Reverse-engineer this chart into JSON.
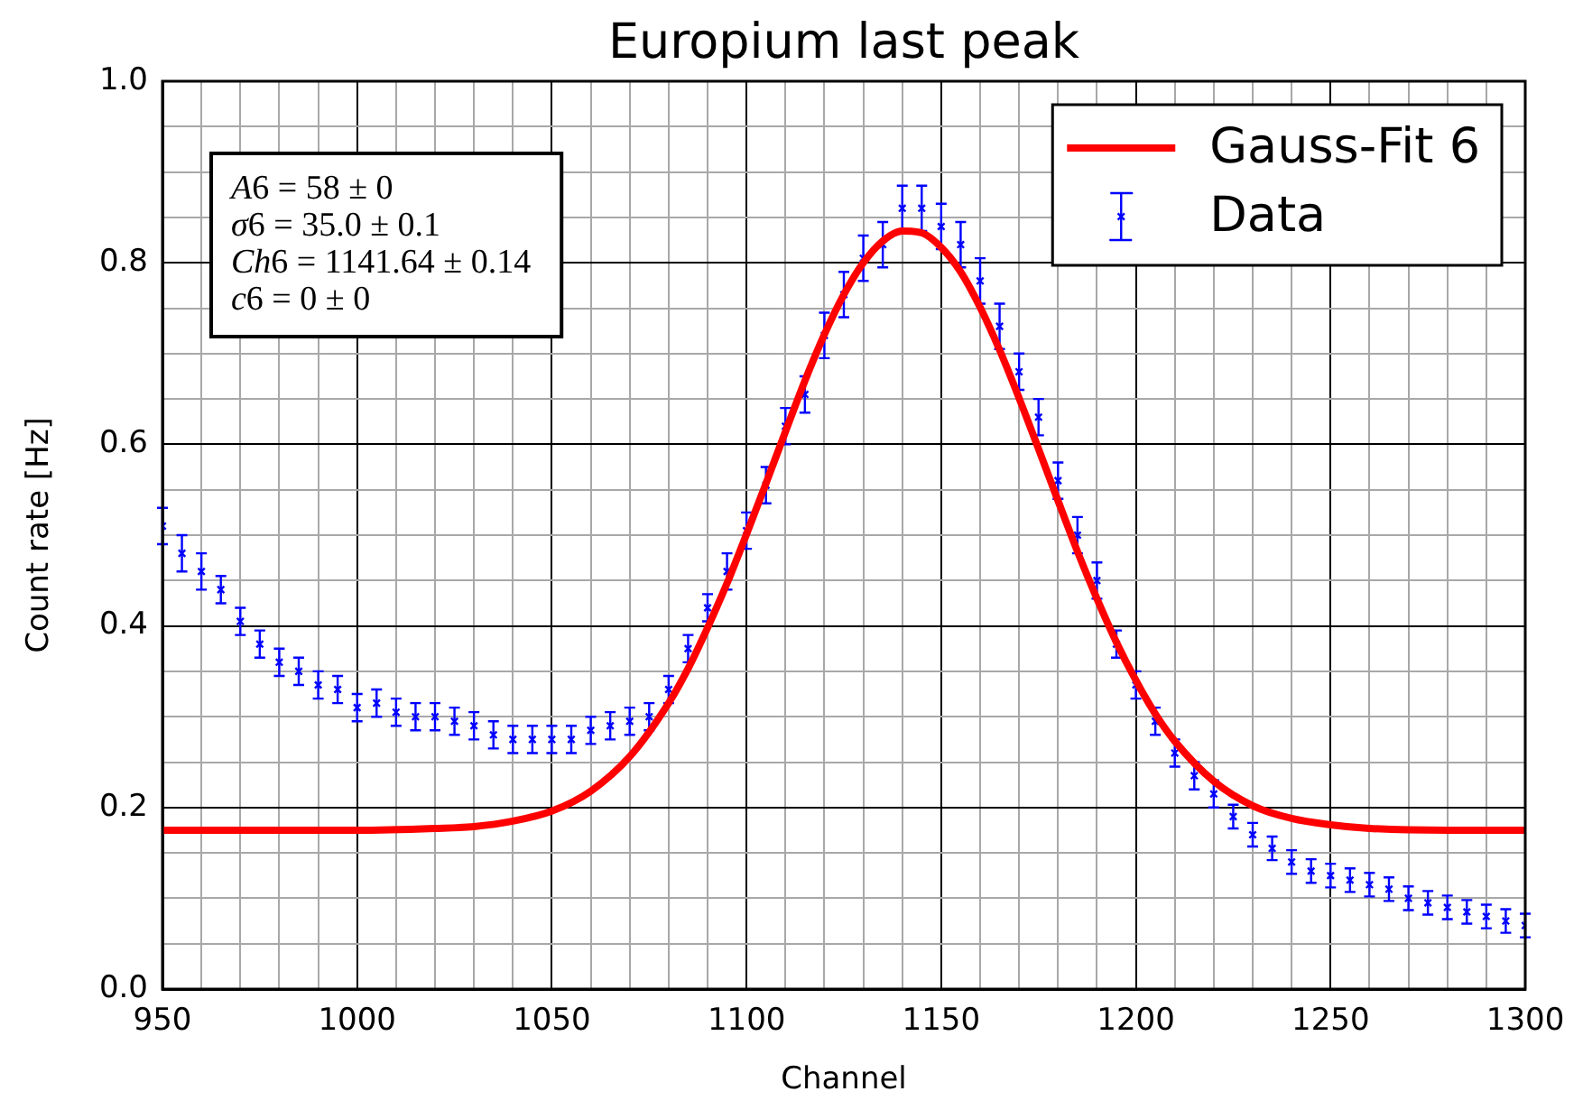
{
  "chart_data": {
    "type": "scatter",
    "title": "Europium last peak",
    "xlabel": "Channel",
    "ylabel": "Count rate [Hz]",
    "annotations": [
      "A6 = 58 ± 0",
      "σ6 = 35.0 ± 0.1",
      "Ch6 = 1141.64 ± 0.14",
      "c6 = 0 ± 0"
    ],
    "xlim": [
      950,
      1300
    ],
    "xticks": [
      950,
      {
        "value": 960,
        "label": null
      },
      {
        "value": 970,
        "label": null
      },
      {
        "value": 980,
        "label": null
      },
      {
        "value": 990,
        "label": null
      },
      1000,
      {
        "value": 1010,
        "label": null
      },
      {
        "value": 1020,
        "label": null
      },
      {
        "value": 1030,
        "label": null
      },
      {
        "value": 1040,
        "label": null
      },
      1050,
      {
        "value": 1060,
        "label": null
      },
      {
        "value": 1070,
        "label": null
      },
      {
        "value": 1080,
        "label": null
      },
      {
        "value": 1090,
        "label": null
      },
      1100,
      {
        "value": 1110,
        "label": null
      },
      {
        "value": 1120,
        "label": null
      },
      {
        "value": 1130,
        "label": null
      },
      {
        "value": 1140,
        "label": null
      },
      1150,
      {
        "value": 1160,
        "label": null
      },
      {
        "value": 1170,
        "label": null
      },
      {
        "value": 1180,
        "label": null
      },
      {
        "value": 1190,
        "label": null
      },
      1200,
      {
        "value": 1210,
        "label": null
      },
      {
        "value": 1220,
        "label": null
      },
      {
        "value": 1230,
        "label": null
      },
      {
        "value": 1240,
        "label": null
      },
      1250,
      {
        "value": 1260,
        "label": null
      },
      {
        "value": 1270,
        "label": null
      },
      {
        "value": 1280,
        "label": null
      },
      {
        "value": 1290,
        "label": null
      },
      1300
    ],
    "ylim": [
      0,
      1
    ],
    "yticks": [
      {
        "value": 0,
        "label": "0.0"
      },
      {
        "value": 0.05,
        "label": null
      },
      {
        "value": 0.1,
        "label": null
      },
      {
        "value": 0.15,
        "label": null
      },
      0.2,
      {
        "value": 0.25,
        "label": null
      },
      {
        "value": 0.3,
        "label": null
      },
      {
        "value": 0.35,
        "label": null
      },
      0.4,
      {
        "value": 0.45,
        "label": null
      },
      {
        "value": 0.5,
        "label": null
      },
      {
        "value": 0.55,
        "label": null
      },
      0.6,
      {
        "value": 0.65,
        "label": null
      },
      {
        "value": 0.7,
        "label": null
      },
      {
        "value": 0.75,
        "label": null
      },
      0.8,
      {
        "value": 0.85,
        "label": null
      },
      {
        "value": 0.9,
        "label": null
      },
      {
        "value": 0.95,
        "label": null
      },
      {
        "value": 1,
        "label": "1.0"
      }
    ],
    "grid": true,
    "legend": "top right",
    "series": [
      {
        "name": "Gauss-Fit 6",
        "type": "line",
        "color": "#ff0000",
        "x": [
          950,
          1000,
          1020,
          1030,
          1040,
          1050,
          1060,
          1070,
          1080,
          1085,
          1090,
          1095,
          1100,
          1105,
          1110,
          1115,
          1120,
          1125,
          1130,
          1135,
          1140,
          1145,
          1150,
          1155,
          1160,
          1165,
          1170,
          1175,
          1180,
          1185,
          1190,
          1195,
          1200,
          1205,
          1210,
          1220,
          1230,
          1240,
          1250,
          1260,
          1280,
          1300
        ],
        "values": [
          0.175,
          0.175,
          0.177,
          0.179,
          0.185,
          0.196,
          0.218,
          0.256,
          0.315,
          0.353,
          0.398,
          0.447,
          0.501,
          0.557,
          0.614,
          0.67,
          0.721,
          0.765,
          0.8,
          0.824,
          0.835,
          0.833,
          0.817,
          0.79,
          0.751,
          0.704,
          0.651,
          0.595,
          0.538,
          0.482,
          0.43,
          0.382,
          0.34,
          0.303,
          0.273,
          0.229,
          0.202,
          0.188,
          0.181,
          0.177,
          0.175,
          0.175
        ]
      },
      {
        "name": "Data",
        "color": "#0000ff",
        "marker": "cross",
        "x": [
          950,
          955,
          960,
          965,
          970,
          975,
          980,
          985,
          990,
          995,
          1000,
          1005,
          1010,
          1015,
          1020,
          1025,
          1030,
          1035,
          1040,
          1045,
          1050,
          1055,
          1060,
          1065,
          1070,
          1075,
          1080,
          1085,
          1090,
          1095,
          1100,
          1105,
          1110,
          1115,
          1120,
          1125,
          1130,
          1135,
          1140,
          1145,
          1150,
          1155,
          1160,
          1165,
          1170,
          1175,
          1180,
          1185,
          1190,
          1195,
          1200,
          1205,
          1210,
          1215,
          1220,
          1225,
          1230,
          1235,
          1240,
          1245,
          1250,
          1255,
          1260,
          1265,
          1270,
          1275,
          1280,
          1285,
          1290,
          1295,
          1300
        ],
        "values": [
          0.51,
          0.48,
          0.46,
          0.44,
          0.405,
          0.38,
          0.36,
          0.35,
          0.335,
          0.33,
          0.31,
          0.315,
          0.305,
          0.3,
          0.3,
          0.295,
          0.29,
          0.28,
          0.275,
          0.275,
          0.275,
          0.275,
          0.285,
          0.29,
          0.295,
          0.3,
          0.33,
          0.375,
          0.42,
          0.46,
          0.505,
          0.555,
          0.62,
          0.655,
          0.72,
          0.765,
          0.805,
          0.82,
          0.86,
          0.86,
          0.84,
          0.82,
          0.78,
          0.73,
          0.68,
          0.63,
          0.56,
          0.5,
          0.45,
          0.38,
          0.335,
          0.295,
          0.26,
          0.235,
          0.215,
          0.19,
          0.17,
          0.155,
          0.14,
          0.13,
          0.125,
          0.12,
          0.115,
          0.11,
          0.1,
          0.095,
          0.09,
          0.085,
          0.08,
          0.075,
          0.07
        ],
        "errors": [
          0.02,
          0.02,
          0.02,
          0.015,
          0.015,
          0.015,
          0.015,
          0.015,
          0.015,
          0.015,
          0.015,
          0.015,
          0.015,
          0.015,
          0.015,
          0.015,
          0.015,
          0.015,
          0.015,
          0.015,
          0.015,
          0.015,
          0.015,
          0.015,
          0.015,
          0.015,
          0.015,
          0.015,
          0.015,
          0.02,
          0.02,
          0.02,
          0.02,
          0.02,
          0.025,
          0.025,
          0.025,
          0.025,
          0.025,
          0.025,
          0.025,
          0.025,
          0.025,
          0.025,
          0.02,
          0.02,
          0.02,
          0.02,
          0.02,
          0.015,
          0.015,
          0.015,
          0.015,
          0.015,
          0.015,
          0.013,
          0.013,
          0.013,
          0.013,
          0.013,
          0.013,
          0.013,
          0.013,
          0.013,
          0.013,
          0.013,
          0.013,
          0.013,
          0.013,
          0.013,
          0.013
        ]
      }
    ]
  }
}
